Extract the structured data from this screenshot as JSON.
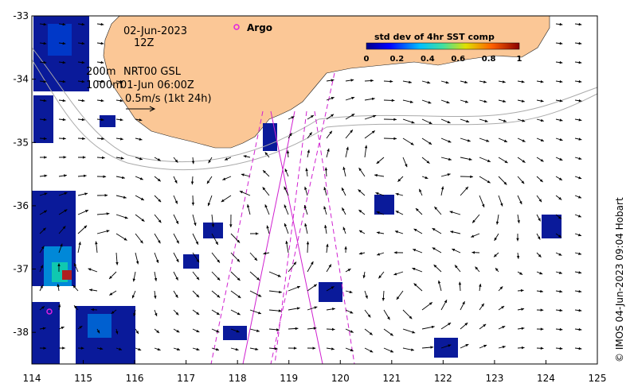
{
  "map": {
    "date": "02-Jun-2023",
    "hour": "12Z",
    "line_200m": "200m",
    "line_1000m": "1000m",
    "product": "NRT00 GSL",
    "time": "01-Jun 06:00Z",
    "scale_vector": "0.5m/s (1kt 24h)",
    "argo_label": "Argo",
    "credit": "© IMOS 04-Jun-2023 09:04 Hobart"
  },
  "colorbar": {
    "title": "std dev of 4hr SST comp",
    "ticks": [
      "0",
      "0.2",
      "0.4",
      "0.6",
      "0.8",
      "1"
    ],
    "min": 0,
    "max": 1
  },
  "axes": {
    "x_ticks": [
      "114",
      "115",
      "116",
      "117",
      "118",
      "119",
      "120",
      "121",
      "122",
      "123",
      "124",
      "125"
    ],
    "y_ticks": [
      "-33",
      "-34",
      "-35",
      "-36",
      "-37",
      "-38"
    ],
    "lon_range": [
      114,
      125
    ],
    "lat_range": [
      -38.5,
      -33
    ]
  },
  "colors": {
    "land": "#fbc796",
    "ocean": "#ffffff",
    "argo": "#e020e0",
    "track": "#d020d0",
    "sst_low": "#00008b",
    "sst_mid": "#00b8d8",
    "sst_high": "#d00000"
  }
}
